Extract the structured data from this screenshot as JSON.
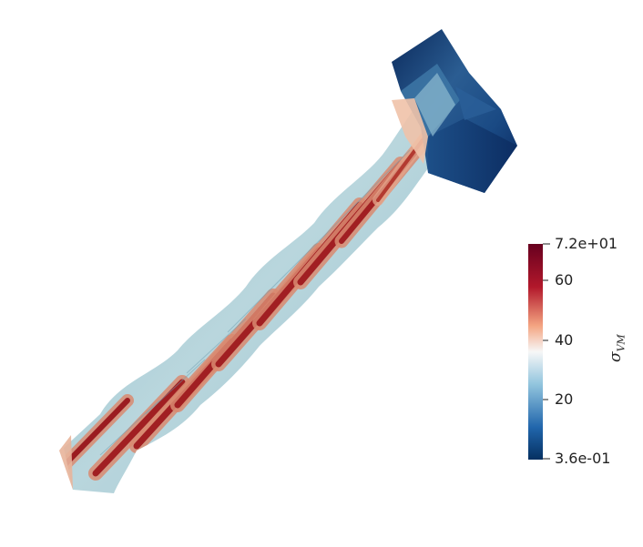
{
  "colorbar": {
    "title": "σ",
    "title_subscript": "VM",
    "max_label": "7.2e+01",
    "min_label": "3.6e-01",
    "ticks": [
      "60",
      "40",
      "20"
    ],
    "colors": {
      "high": "#67001f",
      "upper": "#b2182b",
      "mid_warm": "#f4a582",
      "mid": "#f7f7f7",
      "mid_cool": "#92c5de",
      "lower": "#2166ac",
      "low": "#053061"
    }
  }
}
